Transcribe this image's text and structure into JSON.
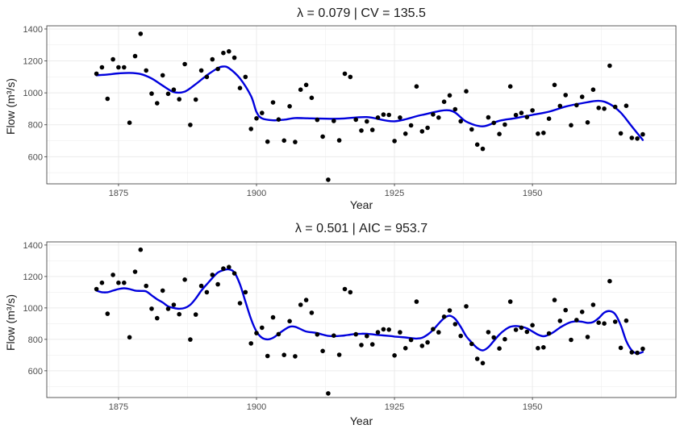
{
  "chart_data": [
    {
      "type": "scatter",
      "title": "λ = 0.079 | CV = 135.5",
      "xlabel": "Year",
      "ylabel": "Flow (m³/s)",
      "xlim": [
        1862,
        1976
      ],
      "ylim": [
        430,
        1420
      ],
      "x_ticks": [
        1875,
        1900,
        1925,
        1950
      ],
      "y_ticks": [
        600,
        800,
        1000,
        1200,
        1400
      ],
      "grid": true,
      "legend": "none",
      "colors": {
        "points": "#000000",
        "smooth": "#0000dd",
        "grid": "#ebebeb",
        "border": "#333333"
      },
      "series": [
        {
          "kind": "points",
          "x": [
            1871,
            1872,
            1873,
            1874,
            1875,
            1876,
            1877,
            1878,
            1879,
            1880,
            1881,
            1882,
            1883,
            1884,
            1885,
            1886,
            1887,
            1888,
            1889,
            1890,
            1891,
            1892,
            1893,
            1894,
            1895,
            1896,
            1897,
            1898,
            1899,
            1900,
            1901,
            1902,
            1903,
            1904,
            1905,
            1906,
            1907,
            1908,
            1909,
            1910,
            1911,
            1912,
            1913,
            1914,
            1915,
            1916,
            1917,
            1918,
            1919,
            1920,
            1921,
            1922,
            1923,
            1924,
            1925,
            1926,
            1927,
            1928,
            1929,
            1930,
            1931,
            1932,
            1933,
            1934,
            1935,
            1936,
            1937,
            1938,
            1939,
            1940,
            1941,
            1942,
            1943,
            1944,
            1945,
            1946,
            1947,
            1948,
            1949,
            1950,
            1951,
            1952,
            1953,
            1954,
            1955,
            1956,
            1957,
            1958,
            1959,
            1960,
            1961,
            1962,
            1963,
            1964,
            1965,
            1966,
            1967,
            1968,
            1969,
            1970
          ],
          "y": [
            1120,
            1160,
            963,
            1210,
            1160,
            1160,
            813,
            1230,
            1370,
            1140,
            995,
            935,
            1110,
            994,
            1020,
            960,
            1180,
            799,
            958,
            1140,
            1100,
            1210,
            1150,
            1250,
            1260,
            1220,
            1030,
            1100,
            774,
            840,
            874,
            694,
            940,
            833,
            701,
            916,
            692,
            1020,
            1050,
            969,
            831,
            726,
            456,
            824,
            702,
            1120,
            1100,
            832,
            764,
            821,
            768,
            845,
            864,
            862,
            698,
            845,
            744,
            796,
            1040,
            759,
            781,
            865,
            845,
            944,
            984,
            897,
            822,
            1010,
            771,
            676,
            649,
            846,
            812,
            742,
            801,
            1040,
            861,
            874,
            848,
            890,
            744,
            749,
            838,
            1050,
            918,
            986,
            797,
            923,
            975,
            815,
            1020,
            906,
            901,
            1170,
            912,
            746,
            919,
            718,
            714,
            740
          ]
        },
        {
          "kind": "smooth",
          "x": [
            1871,
            1873,
            1875,
            1877,
            1879,
            1881,
            1883,
            1885,
            1887,
            1889,
            1891,
            1893,
            1894,
            1895,
            1897,
            1899,
            1900,
            1901,
            1903,
            1905,
            1907,
            1910,
            1915,
            1920,
            1925,
            1930,
            1935,
            1938,
            1941,
            1944,
            1947,
            1950,
            1953,
            1956,
            1959,
            1962,
            1964,
            1966,
            1968,
            1970
          ],
          "y": [
            1110,
            1115,
            1122,
            1125,
            1118,
            1090,
            1045,
            1005,
            1008,
            1055,
            1110,
            1155,
            1165,
            1155,
            1090,
            980,
            880,
            840,
            828,
            832,
            842,
            840,
            838,
            848,
            822,
            862,
            890,
            820,
            790,
            825,
            842,
            862,
            882,
            914,
            935,
            950,
            930,
            876,
            790,
            705
          ]
        }
      ]
    },
    {
      "type": "scatter",
      "title": "λ = 0.501 | AIC = 953.7",
      "xlabel": "Year",
      "ylabel": "Flow (m³/s)",
      "xlim": [
        1862,
        1976
      ],
      "ylim": [
        430,
        1420
      ],
      "x_ticks": [
        1875,
        1900,
        1925,
        1950
      ],
      "y_ticks": [
        600,
        800,
        1000,
        1200,
        1400
      ],
      "grid": true,
      "legend": "none",
      "colors": {
        "points": "#000000",
        "smooth": "#0000dd",
        "grid": "#ebebeb",
        "border": "#333333"
      },
      "series": [
        {
          "kind": "points",
          "x": [
            1871,
            1872,
            1873,
            1874,
            1875,
            1876,
            1877,
            1878,
            1879,
            1880,
            1881,
            1882,
            1883,
            1884,
            1885,
            1886,
            1887,
            1888,
            1889,
            1890,
            1891,
            1892,
            1893,
            1894,
            1895,
            1896,
            1897,
            1898,
            1899,
            1900,
            1901,
            1902,
            1903,
            1904,
            1905,
            1906,
            1907,
            1908,
            1909,
            1910,
            1911,
            1912,
            1913,
            1914,
            1915,
            1916,
            1917,
            1918,
            1919,
            1920,
            1921,
            1922,
            1923,
            1924,
            1925,
            1926,
            1927,
            1928,
            1929,
            1930,
            1931,
            1932,
            1933,
            1934,
            1935,
            1936,
            1937,
            1938,
            1939,
            1940,
            1941,
            1942,
            1943,
            1944,
            1945,
            1946,
            1947,
            1948,
            1949,
            1950,
            1951,
            1952,
            1953,
            1954,
            1955,
            1956,
            1957,
            1958,
            1959,
            1960,
            1961,
            1962,
            1963,
            1964,
            1965,
            1966,
            1967,
            1968,
            1969,
            1970
          ],
          "y": [
            1120,
            1160,
            963,
            1210,
            1160,
            1160,
            813,
            1230,
            1370,
            1140,
            995,
            935,
            1110,
            994,
            1020,
            960,
            1180,
            799,
            958,
            1140,
            1100,
            1210,
            1150,
            1250,
            1260,
            1220,
            1030,
            1100,
            774,
            840,
            874,
            694,
            940,
            833,
            701,
            916,
            692,
            1020,
            1050,
            969,
            831,
            726,
            456,
            824,
            702,
            1120,
            1100,
            832,
            764,
            821,
            768,
            845,
            864,
            862,
            698,
            845,
            744,
            796,
            1040,
            759,
            781,
            865,
            845,
            944,
            984,
            897,
            822,
            1010,
            771,
            676,
            649,
            846,
            812,
            742,
            801,
            1040,
            861,
            874,
            848,
            890,
            744,
            749,
            838,
            1050,
            918,
            986,
            797,
            923,
            975,
            815,
            1020,
            906,
            901,
            1170,
            912,
            746,
            919,
            718,
            714,
            740
          ]
        },
        {
          "kind": "smooth",
          "x": [
            1871,
            1872,
            1873,
            1874,
            1875,
            1876,
            1877,
            1878,
            1879,
            1880,
            1881,
            1882,
            1883,
            1884,
            1885,
            1886,
            1887,
            1888,
            1889,
            1890,
            1891,
            1892,
            1893,
            1894,
            1895,
            1896,
            1897,
            1898,
            1899,
            1900,
            1901,
            1902,
            1903,
            1904,
            1905,
            1906,
            1907,
            1908,
            1909,
            1910,
            1911,
            1912,
            1913,
            1914,
            1915,
            1916,
            1917,
            1918,
            1919,
            1920,
            1921,
            1922,
            1923,
            1924,
            1925,
            1926,
            1927,
            1928,
            1929,
            1930,
            1931,
            1932,
            1933,
            1934,
            1935,
            1936,
            1937,
            1938,
            1939,
            1940,
            1941,
            1942,
            1943,
            1944,
            1945,
            1946,
            1947,
            1948,
            1949,
            1950,
            1951,
            1952,
            1953,
            1954,
            1955,
            1956,
            1957,
            1958,
            1959,
            1960,
            1961,
            1962,
            1963,
            1964,
            1965,
            1966,
            1967,
            1968,
            1969,
            1970
          ],
          "y": [
            1110,
            1100,
            1100,
            1110,
            1120,
            1125,
            1120,
            1110,
            1108,
            1105,
            1080,
            1055,
            1035,
            1010,
            1000,
            995,
            1000,
            1020,
            1060,
            1110,
            1150,
            1190,
            1225,
            1240,
            1245,
            1225,
            1150,
            1040,
            930,
            850,
            810,
            800,
            810,
            835,
            860,
            880,
            880,
            865,
            850,
            845,
            840,
            830,
            822,
            820,
            822,
            825,
            830,
            834,
            836,
            835,
            832,
            828,
            825,
            822,
            818,
            815,
            812,
            808,
            805,
            810,
            830,
            860,
            900,
            935,
            950,
            930,
            880,
            820,
            780,
            745,
            730,
            750,
            790,
            830,
            860,
            880,
            885,
            880,
            870,
            850,
            830,
            820,
            830,
            850,
            875,
            895,
            910,
            915,
            912,
            905,
            910,
            935,
            970,
            980,
            960,
            890,
            790,
            730,
            710,
            720
          ]
        }
      ]
    }
  ]
}
